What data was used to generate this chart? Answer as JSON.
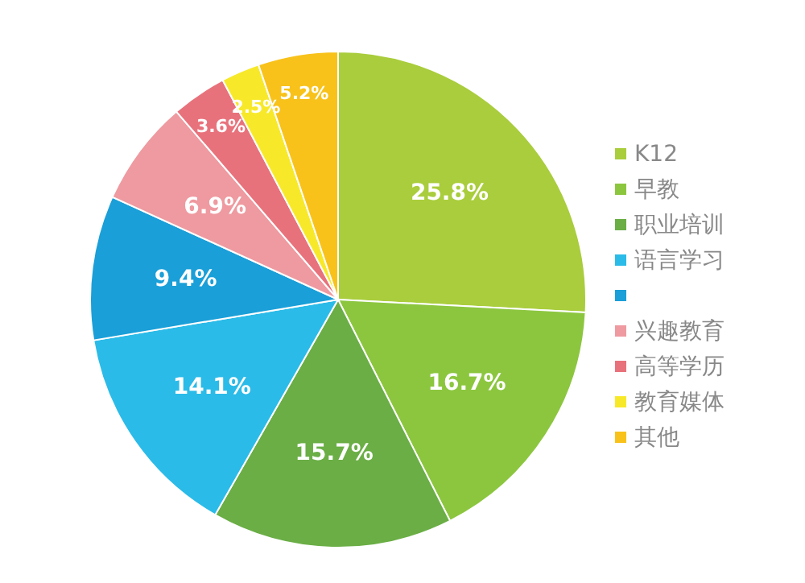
{
  "chart_data": {
    "type": "pie",
    "categories": [
      "K12",
      "早教",
      "职业培训",
      "语言学习",
      null,
      "兴趣教育",
      "高等学历",
      "教育媒体",
      "其他"
    ],
    "values": [
      25.8,
      16.7,
      15.7,
      14.1,
      9.4,
      6.9,
      3.6,
      2.5,
      5.2
    ],
    "colors": [
      "#a9cd3c",
      "#8cc63f",
      "#6aae45",
      "#2bbbe8",
      "#1a9fd8",
      "#ee9aa0",
      "#e8727c",
      "#f7e92a",
      "#f8c21a"
    ],
    "value_labels": [
      "25.8%",
      "16.7%",
      "15.7%",
      "14.1%",
      "9.4%",
      "6.9%",
      "3.6%",
      "2.5%",
      "5.2%"
    ],
    "legend": "right"
  }
}
